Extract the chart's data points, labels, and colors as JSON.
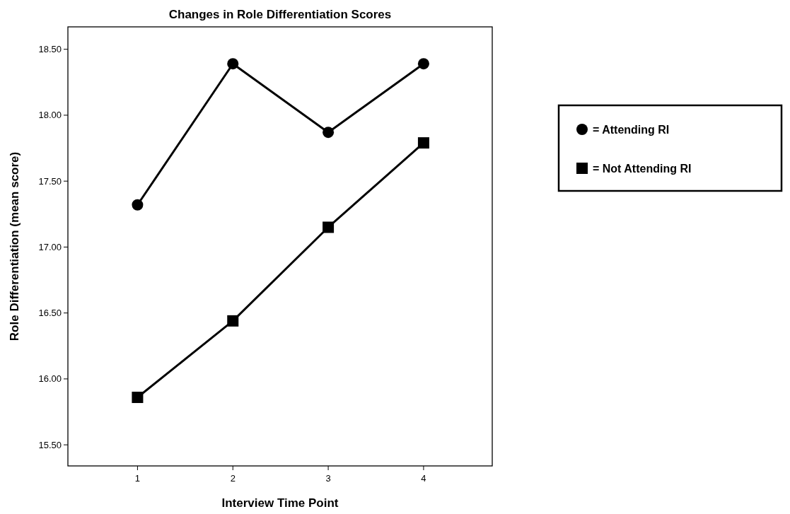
{
  "chart_data": {
    "type": "line",
    "title": "Changes in Role Differentiation Scores",
    "xlabel": "Interview Time Point",
    "ylabel": "Role Differentiation (mean score)",
    "x": [
      1,
      2,
      3,
      4
    ],
    "xlim": [
      0.27,
      4.72
    ],
    "xticks": [
      1,
      2,
      3,
      4
    ],
    "ylim": [
      15.34,
      18.67
    ],
    "yticks": [
      {
        "value": 15.5,
        "label": "15.50"
      },
      {
        "value": 16,
        "label": "16.00"
      },
      {
        "value": 16.5,
        "label": "16.50"
      },
      {
        "value": 17,
        "label": "17.00"
      },
      {
        "value": 17.5,
        "label": "17.50"
      },
      {
        "value": 18,
        "label": "18.00"
      },
      {
        "value": 18.5,
        "label": "18.50"
      }
    ],
    "series": [
      {
        "name": "= Attending RI",
        "color": "#000000",
        "marker": "circle",
        "values": [
          17.32,
          18.39,
          17.87,
          18.39
        ]
      },
      {
        "name": "= Not Attending RI",
        "color": "#000000",
        "marker": "square",
        "values": [
          15.86,
          16.44,
          17.15,
          17.79
        ]
      }
    ],
    "legend": "right",
    "grid": false,
    "line_style": "solid"
  }
}
